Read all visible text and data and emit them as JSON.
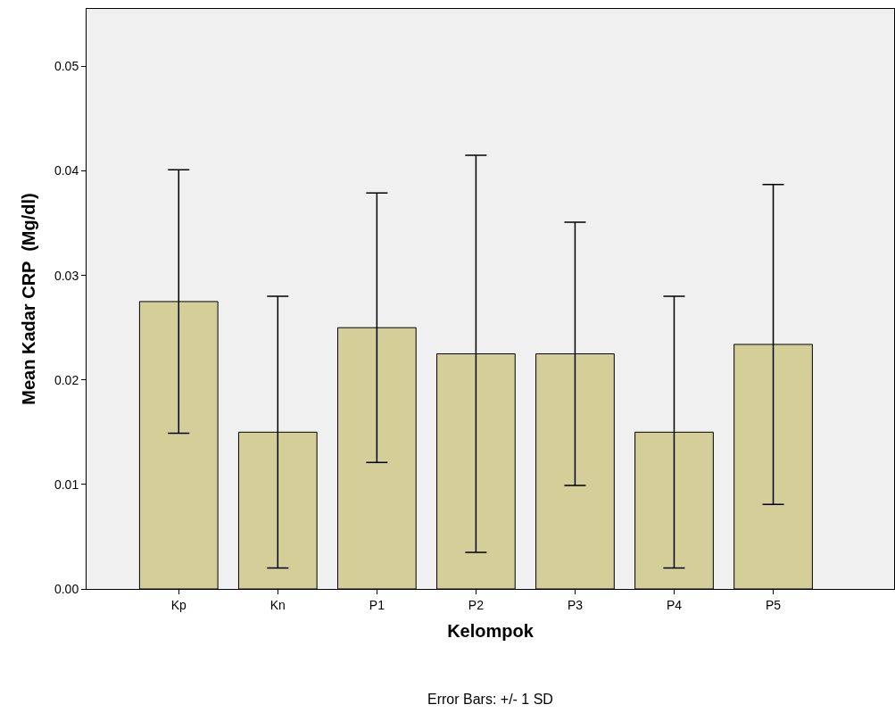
{
  "chart_data": {
    "type": "bar",
    "xlabel": "Kelompok",
    "ylabel": "Mean Kadar CRP  (Mg/dl)",
    "categories": [
      "Kp",
      "Kn",
      "P1",
      "P2",
      "P3",
      "P4",
      "P5"
    ],
    "values": [
      0.0275,
      0.015,
      0.025,
      0.0225,
      0.0225,
      0.015,
      0.0234
    ],
    "errors": [
      0.0126,
      0.013,
      0.0129,
      0.019,
      0.0126,
      0.013,
      0.0153
    ],
    "color": "#d4cf98",
    "ylim": [
      0,
      0.0555
    ],
    "yticks": [
      {
        "value": 0,
        "label": "0.00"
      },
      {
        "value": 0.01,
        "label": "0.01"
      },
      {
        "value": 0.02,
        "label": "0.02"
      },
      {
        "value": 0.03,
        "label": "0.03"
      },
      {
        "value": 0.04,
        "label": "0.04"
      },
      {
        "value": 0.05,
        "label": "0.05"
      }
    ],
    "grid": false,
    "annotations": [
      "Error Bars: +/- 1 SD"
    ]
  }
}
